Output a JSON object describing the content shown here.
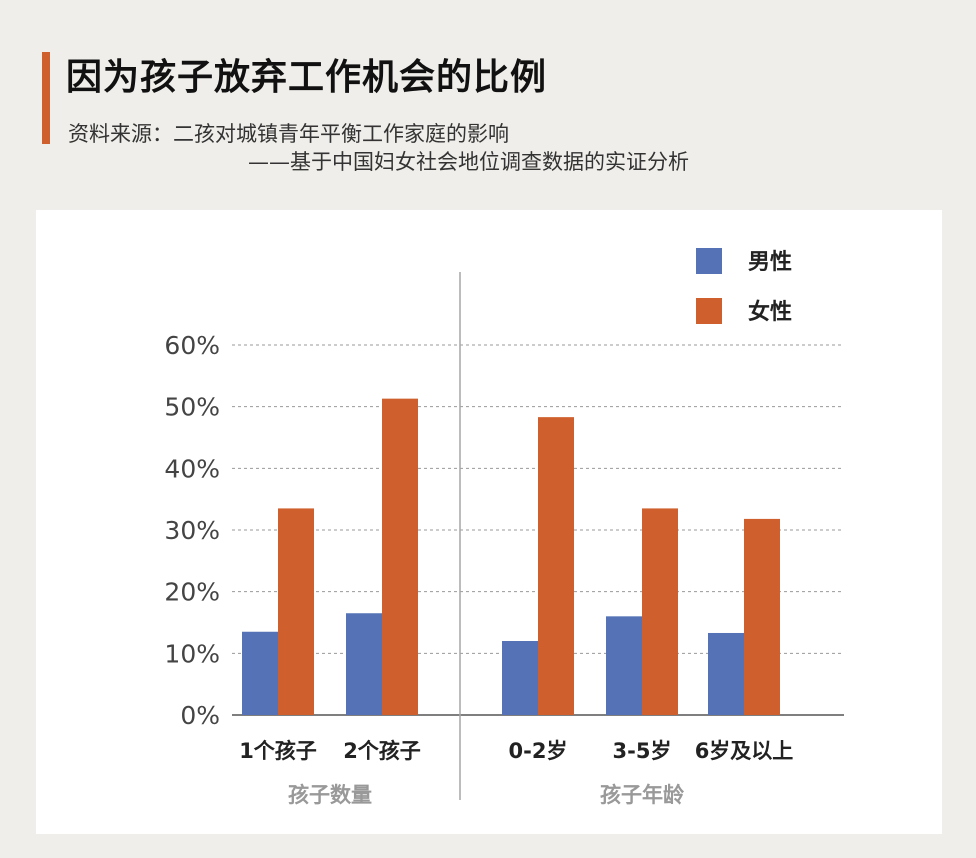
{
  "title": "因为孩子放弃工作机会的比例",
  "source": {
    "line1": "资料来源：二孩对城镇青年平衡工作家庭的影响",
    "line2": "——基于中国妇女社会地位调查数据的实证分析"
  },
  "colors": {
    "accent": "#cf5f2c",
    "male": "#5472b5",
    "female": "#cf5f2c",
    "grid": "#9a9a9a",
    "divider": "#a6a6a6"
  },
  "chart_data": {
    "type": "bar",
    "title": "",
    "xlabel": "",
    "ylabel": "",
    "ylim": [
      0,
      60
    ],
    "yticks": [
      "0%",
      "10%",
      "20%",
      "30%",
      "40%",
      "50%",
      "60%"
    ],
    "grid": true,
    "legend_position": "top-right",
    "categories": [
      "1个孩子",
      "2个孩子",
      "0-2岁",
      "3-5岁",
      "6岁及以上"
    ],
    "groups": [
      {
        "label": "孩子数量",
        "categories": [
          "1个孩子",
          "2个孩子"
        ]
      },
      {
        "label": "孩子年龄",
        "categories": [
          "0-2岁",
          "3-5岁",
          "6岁及以上"
        ]
      }
    ],
    "series": [
      {
        "name": "男性",
        "color": "#5472b5",
        "values": [
          13.5,
          16.5,
          12.0,
          16.0,
          13.3
        ]
      },
      {
        "name": "女性",
        "color": "#cf5f2c",
        "values": [
          33.5,
          51.3,
          48.3,
          33.5,
          31.8
        ]
      }
    ]
  }
}
